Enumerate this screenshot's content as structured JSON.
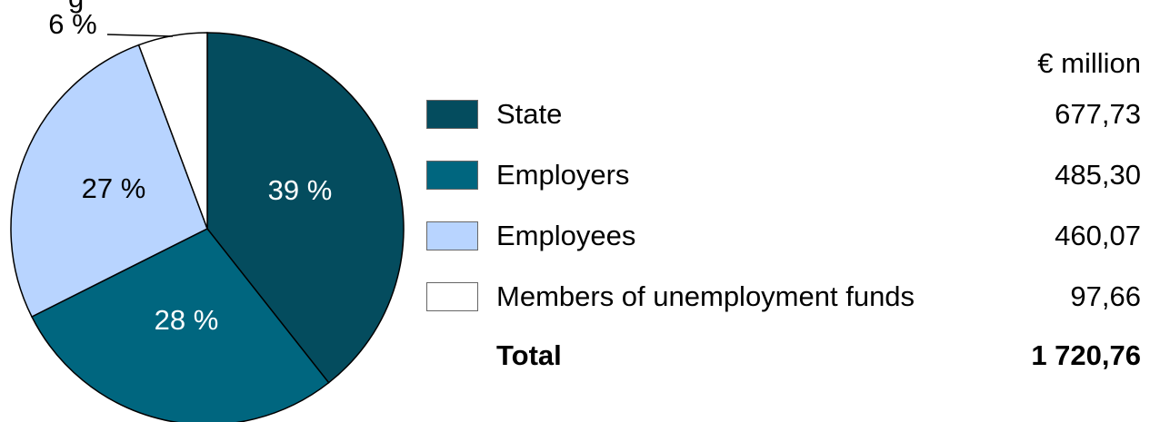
{
  "chart_data": {
    "type": "pie",
    "unit_label": "€ million",
    "slices": [
      {
        "label": "State",
        "value": 677.73,
        "value_text": "677,73",
        "percent_text": "39 %",
        "color": "#044c5e"
      },
      {
        "label": "Employers",
        "value": 485.3,
        "value_text": "485,30",
        "percent_text": "28 %",
        "color": "#00667f"
      },
      {
        "label": "Employees",
        "value": 460.07,
        "value_text": "460,07",
        "percent_text": "27 %",
        "color": "#b8d4ff"
      },
      {
        "label": "Members of unemployment funds",
        "value": 97.66,
        "value_text": "97,66",
        "percent_text": "6 %",
        "color": "#ffffff"
      }
    ],
    "total": {
      "label": "Total",
      "value": 1720.76,
      "value_text": "1 720,76"
    },
    "partial_text": "g"
  }
}
